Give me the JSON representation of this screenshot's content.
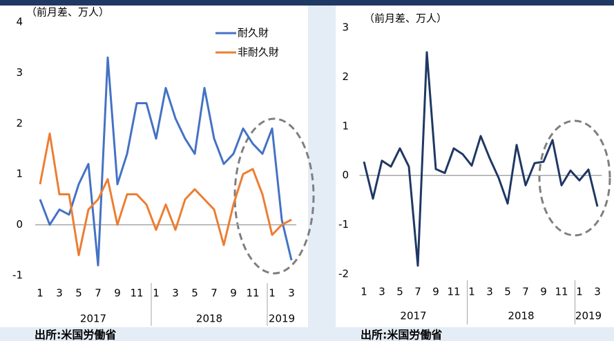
{
  "chart_data": [
    {
      "type": "line",
      "y_label": "（前月差、万人）",
      "categories": [
        "1",
        null,
        "3",
        null,
        "5",
        null,
        "7",
        null,
        "9",
        null,
        "11",
        null,
        "1",
        null,
        "3",
        null,
        "5",
        null,
        "7",
        null,
        "9",
        null,
        "11",
        null,
        "1",
        null,
        "3"
      ],
      "year_groups": [
        {
          "label": "2017",
          "span": 12
        },
        {
          "label": "2018",
          "span": 12
        },
        {
          "label": "2019",
          "span": 3
        }
      ],
      "series": [
        {
          "name": "耐久財",
          "color": "#4472c4",
          "values": [
            0.5,
            0.0,
            0.3,
            0.2,
            0.8,
            1.2,
            -0.8,
            3.3,
            0.8,
            1.4,
            2.4,
            2.4,
            1.7,
            2.7,
            2.1,
            1.7,
            1.4,
            2.7,
            1.7,
            1.2,
            1.4,
            1.9,
            1.6,
            1.4,
            1.9,
            0.1,
            -0.7
          ]
        },
        {
          "name": "非耐久財",
          "color": "#ed7d31",
          "values": [
            0.8,
            1.8,
            0.6,
            0.6,
            -0.6,
            0.3,
            0.5,
            0.9,
            0.0,
            0.6,
            0.6,
            0.4,
            -0.1,
            0.4,
            -0.1,
            0.5,
            0.7,
            0.5,
            0.3,
            -0.4,
            0.4,
            1.0,
            1.1,
            0.6,
            -0.2,
            0.0,
            0.1
          ]
        }
      ],
      "ylim": [
        -1,
        4
      ],
      "yticks": [
        -1,
        0,
        1,
        2,
        3,
        4
      ],
      "legend": "upper right",
      "source": "出所:米国労働省"
    },
    {
      "type": "line",
      "y_label": "（前月差、万人）",
      "categories": [
        "1",
        null,
        "3",
        null,
        "5",
        null,
        "7",
        null,
        "9",
        null,
        "11",
        null,
        "1",
        null,
        "3",
        null,
        "5",
        null,
        "7",
        null,
        "9",
        null,
        "11",
        null,
        "1",
        null,
        "3"
      ],
      "year_groups": [
        {
          "label": "2017",
          "span": 12
        },
        {
          "label": "2018",
          "span": 12
        },
        {
          "label": "2019",
          "span": 3
        }
      ],
      "series": [
        {
          "color": "#1f3864",
          "values": [
            0.28,
            -0.47,
            0.3,
            0.18,
            0.55,
            0.18,
            -1.83,
            2.5,
            0.13,
            0.05,
            0.55,
            0.43,
            0.2,
            0.8,
            0.35,
            -0.05,
            -0.57,
            0.62,
            -0.2,
            0.25,
            0.28,
            0.72,
            -0.2,
            0.1,
            -0.1,
            0.12,
            -0.63
          ]
        }
      ],
      "ylim": [
        -2,
        3
      ],
      "yticks": [
        -2,
        -1,
        0,
        1,
        2,
        3
      ],
      "source": "出所:米国労働省"
    }
  ]
}
